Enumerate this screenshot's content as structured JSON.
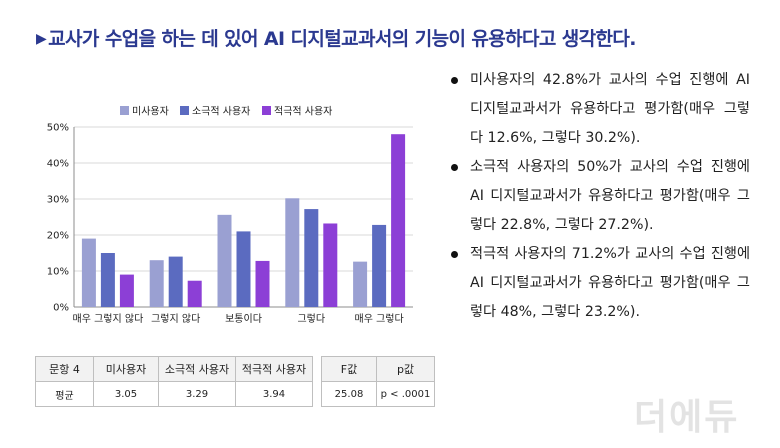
{
  "heading": "교사가 수업을 하는 데 있어 AI 디지털교과서의 기능이 유용하다고 생각한다.",
  "heading_marker": "▶",
  "colors": {
    "heading": "#2b3990",
    "series": [
      "#9aa0d2",
      "#5b6bc0",
      "#8c3fd6"
    ]
  },
  "chart_data": {
    "type": "bar",
    "categories": [
      "매우 그렇지 않다",
      "그렇지 않다",
      "보통이다",
      "그렇다",
      "매우 그렇다"
    ],
    "series": [
      {
        "name": "미사용자",
        "values": [
          19,
          13,
          25.6,
          30.2,
          12.6
        ]
      },
      {
        "name": "소극적 사용자",
        "values": [
          15,
          14,
          21,
          27.2,
          22.8
        ]
      },
      {
        "name": "적극적 사용자",
        "values": [
          9,
          7.3,
          12.8,
          23.2,
          48
        ]
      }
    ],
    "ylim": [
      0,
      50
    ],
    "yticks": [
      "0%",
      "10%",
      "20%",
      "30%",
      "40%",
      "50%"
    ],
    "legend_position": "top",
    "grid": true
  },
  "stats_table": {
    "headers": [
      "문항 4",
      "미사용자",
      "소극적 사용자",
      "적극적 사용자"
    ],
    "row": [
      "평균",
      "3.05",
      "3.29",
      "3.94"
    ]
  },
  "test_table": {
    "headers": [
      "F값",
      "p값"
    ],
    "row": [
      "25.08",
      "p < .0001"
    ]
  },
  "bullets": [
    "미사용자의 42.8%가 교사의 수업 진행에 AI 디지털교과서가 유용하다고 평가함(매우 그렇다 12.6%, 그렇다 30.2%).",
    "소극적 사용자의 50%가 교사의 수업 진행에 AI 디지털교과서가 유용하다고 평가함(매우 그렇다 22.8%, 그렇다 27.2%).",
    "적극적 사용자의 71.2%가 교사의 수업 진행에 AI 디지털교과서가 유용하다고 평가함(매우 그렇다 48%, 그렇다 23.2%)."
  ],
  "watermark": "더에듀"
}
